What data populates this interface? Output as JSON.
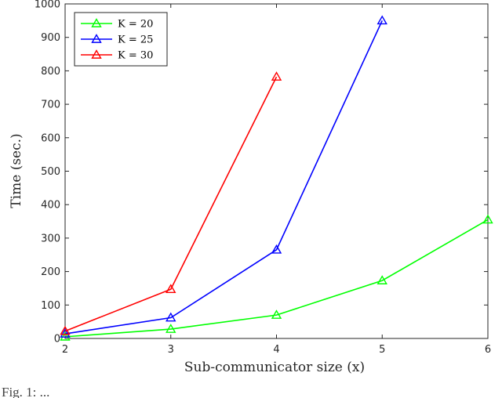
{
  "chart_data": {
    "type": "line",
    "title": "",
    "xlabel": "Sub-communicator size (x)",
    "ylabel": "Time (sec.)",
    "xlim": [
      2,
      6
    ],
    "ylim": [
      0,
      1000
    ],
    "xticks": [
      2,
      3,
      4,
      5,
      6
    ],
    "yticks": [
      0,
      100,
      200,
      300,
      400,
      500,
      600,
      700,
      800,
      900,
      1000
    ],
    "grid": false,
    "legend_position": "top-left",
    "marker": "triangle-hollow",
    "series": [
      {
        "name": "K = 20",
        "color": "#00ff00",
        "x": [
          2,
          3,
          4,
          5,
          6
        ],
        "y": [
          5,
          28,
          70,
          173,
          355
        ]
      },
      {
        "name": "K = 25",
        "color": "#0000ff",
        "x": [
          2,
          3,
          4,
          5
        ],
        "y": [
          14,
          62,
          265,
          950
        ]
      },
      {
        "name": "K = 30",
        "color": "#ff0000",
        "x": [
          2,
          3,
          4
        ],
        "y": [
          22,
          147,
          782
        ]
      }
    ]
  },
  "caption_fragment": "Fig. 1: ..."
}
